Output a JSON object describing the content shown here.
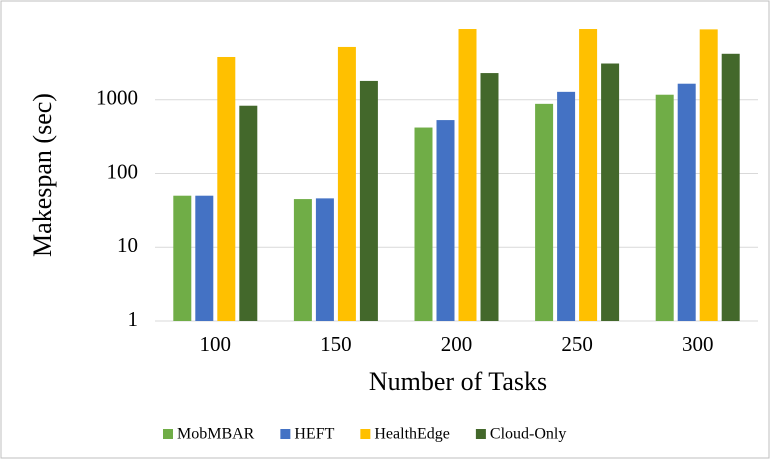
{
  "chart_data": {
    "type": "bar",
    "y_label": "Makespan (sec)",
    "x_label": "Number of Tasks",
    "categories": [
      "100",
      "150",
      "200",
      "250",
      "300"
    ],
    "series": [
      {
        "name": "MobMBAR",
        "color": "#70ad47",
        "values": [
          50,
          45,
          420,
          880,
          1170
        ]
      },
      {
        "name": "HEFT",
        "color": "#4472c4",
        "values": [
          50,
          46,
          530,
          1280,
          1650
        ]
      },
      {
        "name": "HealthEdge",
        "color": "#ffc000",
        "values": [
          3800,
          5200,
          9100,
          9100,
          9000
        ]
      },
      {
        "name": "Cloud-Only",
        "color": "#43682b",
        "values": [
          830,
          1800,
          2300,
          3100,
          4200
        ]
      }
    ],
    "ylim": [
      1,
      10000
    ],
    "yticks": [
      1,
      10,
      100,
      1000
    ],
    "log_scale": true,
    "grid": true,
    "legend": "bottom"
  }
}
